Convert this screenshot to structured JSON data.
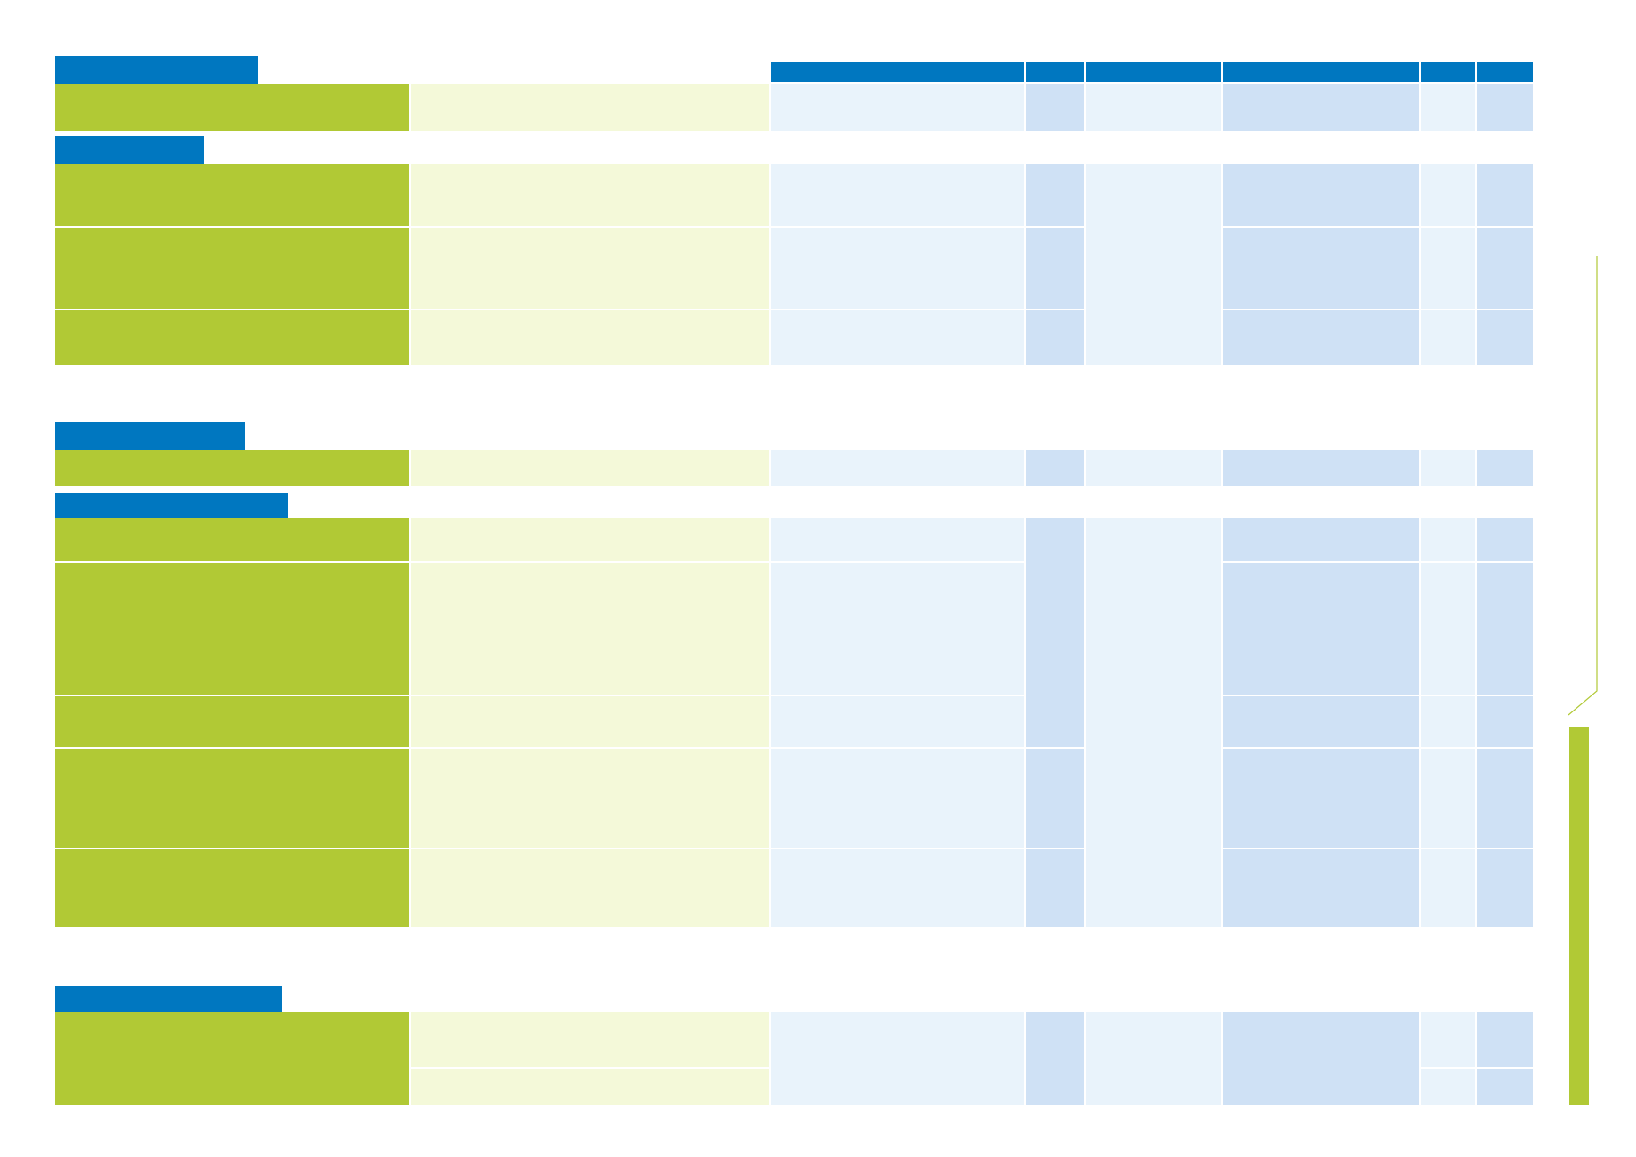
{
  "colors": {
    "blue": "#0077c0",
    "green": "#b1c935",
    "lightgreen": "#f4f9d9",
    "paleblue": "#e9f3fb",
    "midblue": "#cfe1f5"
  },
  "header_columns": [
    "",
    "",
    "",
    "",
    "",
    ""
  ],
  "sections": [
    {
      "title": "",
      "rows": 1
    },
    {
      "title": "",
      "rows": 3
    },
    {
      "title": "",
      "rows": 1
    },
    {
      "title": "",
      "rows": 5
    },
    {
      "title": "",
      "rows": 2
    }
  ],
  "side_panel": {
    "label": ""
  }
}
